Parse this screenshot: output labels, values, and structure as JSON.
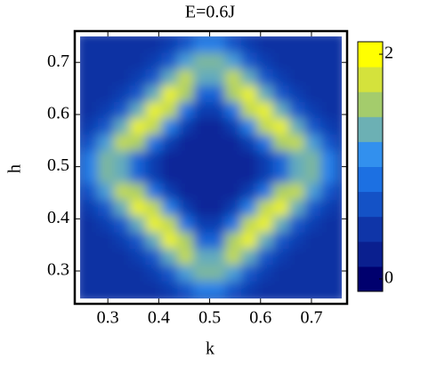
{
  "chart_data": {
    "type": "heatmap",
    "title": "E=0.6J",
    "xlabel": "k",
    "ylabel": "h",
    "x": [
      0.2656,
      0.2969,
      0.3281,
      0.3594,
      0.3906,
      0.4219,
      0.4531,
      0.4844,
      0.5156,
      0.5469,
      0.5781,
      0.6094,
      0.6406,
      0.6719,
      0.7031,
      0.7344
    ],
    "y": [
      0.2656,
      0.2969,
      0.3281,
      0.3594,
      0.3906,
      0.4219,
      0.4531,
      0.4844,
      0.5156,
      0.5469,
      0.5781,
      0.6094,
      0.6406,
      0.6719,
      0.7031,
      0.7344
    ],
    "z": [
      [
        0.4,
        0.4,
        0.4,
        0.4,
        0.4,
        0.5,
        0.7,
        1.0,
        1.0,
        0.7,
        0.5,
        0.4,
        0.4,
        0.4,
        0.4,
        0.4
      ],
      [
        0.4,
        0.4,
        0.4,
        0.4,
        0.5,
        0.7,
        1.2,
        1.4,
        1.4,
        1.2,
        0.7,
        0.5,
        0.4,
        0.4,
        0.4,
        0.4
      ],
      [
        0.4,
        0.4,
        0.4,
        0.5,
        0.7,
        1.3,
        1.7,
        1.3,
        1.3,
        1.7,
        1.3,
        0.7,
        0.5,
        0.4,
        0.4,
        0.4
      ],
      [
        0.4,
        0.4,
        0.5,
        0.7,
        1.3,
        1.9,
        1.6,
        0.8,
        0.8,
        1.6,
        1.9,
        1.3,
        0.7,
        0.5,
        0.4,
        0.4
      ],
      [
        0.4,
        0.5,
        0.7,
        1.3,
        1.9,
        1.7,
        0.9,
        0.5,
        0.5,
        0.9,
        1.7,
        1.9,
        1.3,
        0.7,
        0.5,
        0.4
      ],
      [
        0.5,
        0.7,
        1.3,
        1.9,
        1.7,
        1.0,
        0.5,
        0.3,
        0.3,
        0.5,
        1.0,
        1.7,
        1.9,
        1.3,
        0.7,
        0.5
      ],
      [
        0.7,
        1.2,
        1.7,
        1.6,
        0.9,
        0.5,
        0.3,
        0.3,
        0.3,
        0.3,
        0.5,
        0.9,
        1.6,
        1.7,
        1.2,
        0.7
      ],
      [
        1.0,
        1.4,
        1.3,
        0.8,
        0.5,
        0.3,
        0.3,
        0.3,
        0.3,
        0.3,
        0.3,
        0.5,
        0.8,
        1.3,
        1.4,
        1.0
      ],
      [
        1.0,
        1.4,
        1.3,
        0.8,
        0.5,
        0.3,
        0.3,
        0.3,
        0.3,
        0.3,
        0.3,
        0.5,
        0.8,
        1.3,
        1.4,
        1.0
      ],
      [
        0.7,
        1.2,
        1.7,
        1.6,
        0.9,
        0.5,
        0.3,
        0.3,
        0.3,
        0.3,
        0.5,
        0.9,
        1.6,
        1.7,
        1.2,
        0.7
      ],
      [
        0.5,
        0.7,
        1.3,
        1.9,
        1.7,
        1.0,
        0.5,
        0.3,
        0.3,
        0.5,
        1.0,
        1.7,
        1.9,
        1.3,
        0.7,
        0.5
      ],
      [
        0.4,
        0.5,
        0.7,
        1.3,
        1.9,
        1.7,
        0.9,
        0.5,
        0.5,
        0.9,
        1.7,
        1.9,
        1.3,
        0.7,
        0.5,
        0.4
      ],
      [
        0.4,
        0.4,
        0.5,
        0.7,
        1.3,
        1.9,
        1.6,
        0.8,
        0.8,
        1.6,
        1.9,
        1.3,
        0.7,
        0.5,
        0.4,
        0.4
      ],
      [
        0.4,
        0.4,
        0.4,
        0.5,
        0.7,
        1.3,
        1.7,
        1.3,
        1.3,
        1.7,
        1.3,
        0.7,
        0.5,
        0.4,
        0.4,
        0.4
      ],
      [
        0.4,
        0.4,
        0.4,
        0.4,
        0.5,
        0.7,
        1.2,
        1.4,
        1.4,
        1.2,
        0.7,
        0.5,
        0.4,
        0.4,
        0.4,
        0.4
      ],
      [
        0.4,
        0.4,
        0.4,
        0.4,
        0.4,
        0.5,
        0.7,
        1.0,
        1.0,
        0.7,
        0.5,
        0.4,
        0.4,
        0.4,
        0.4,
        0.4
      ]
    ],
    "xlim": [
      0.235,
      0.77
    ],
    "ylim": [
      0.237,
      0.76
    ],
    "xticks": [
      0.3,
      0.4,
      0.5,
      0.6,
      0.7
    ],
    "yticks": [
      0.3,
      0.4,
      0.5,
      0.6,
      0.7
    ],
    "clim": [
      0,
      2
    ],
    "cticks": [
      0,
      2
    ],
    "colorscale": [
      "#00006e",
      "#0a1f8f",
      "#0f35a8",
      "#1452c6",
      "#1c70e2",
      "#3290ee",
      "#6cb0b4",
      "#a4cc6c",
      "#d4e23c",
      "#ffff00"
    ]
  }
}
